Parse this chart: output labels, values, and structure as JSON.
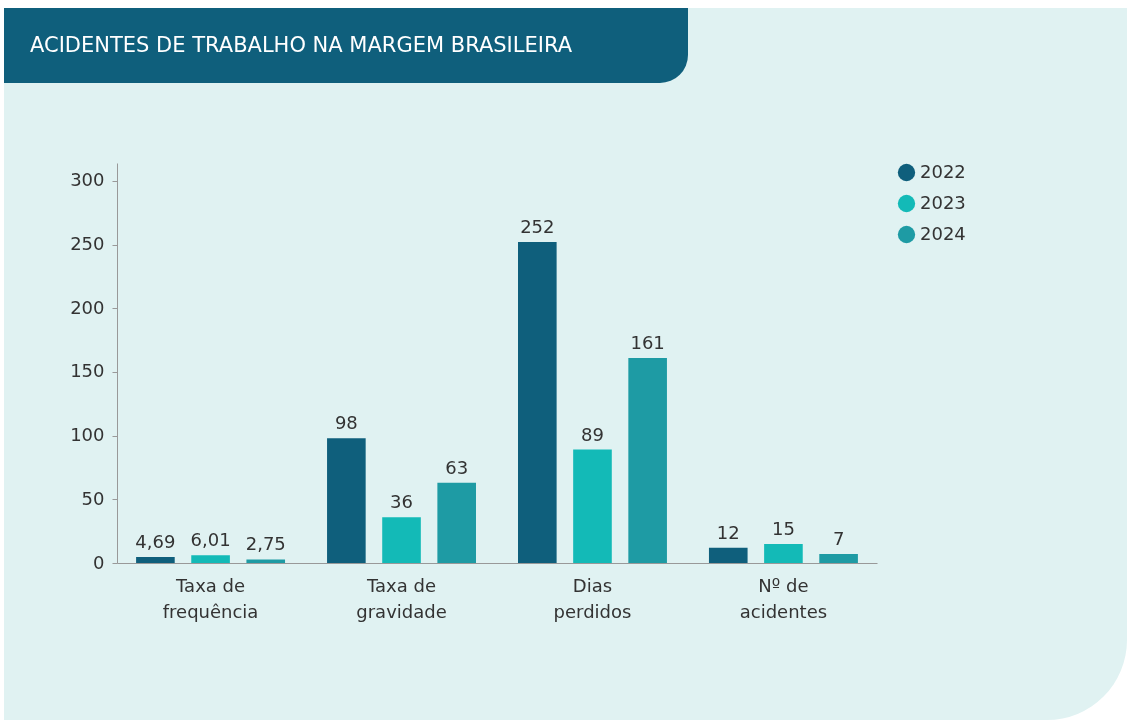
{
  "chart_data": {
    "type": "bar",
    "title": "ACIDENTES DE TRABALHO NA MARGEM BRASILEIRA",
    "categories": [
      "Taxa de\nfrequência",
      "Taxa de\ngravidade",
      "Dias\nperdidos",
      "Nº de\nacidentes"
    ],
    "series": [
      {
        "name": "2022",
        "color": "#0f5f7c",
        "values": [
          4.69,
          98,
          252,
          12
        ],
        "value_labels": [
          "4,69",
          "98",
          "252",
          "12"
        ]
      },
      {
        "name": "2023",
        "color": "#13bab7",
        "values": [
          6.01,
          36,
          89,
          15
        ],
        "value_labels": [
          "6,01",
          "36",
          "89",
          "15"
        ]
      },
      {
        "name": "2024",
        "color": "#1e9ba4",
        "values": [
          2.75,
          63,
          161,
          7
        ],
        "value_labels": [
          "2,75",
          "63",
          "161",
          "7"
        ]
      }
    ],
    "ylim": [
      0,
      314
    ],
    "yticks": [
      0,
      50,
      100,
      150,
      200,
      250,
      300
    ],
    "grid": false,
    "legend": "right"
  }
}
